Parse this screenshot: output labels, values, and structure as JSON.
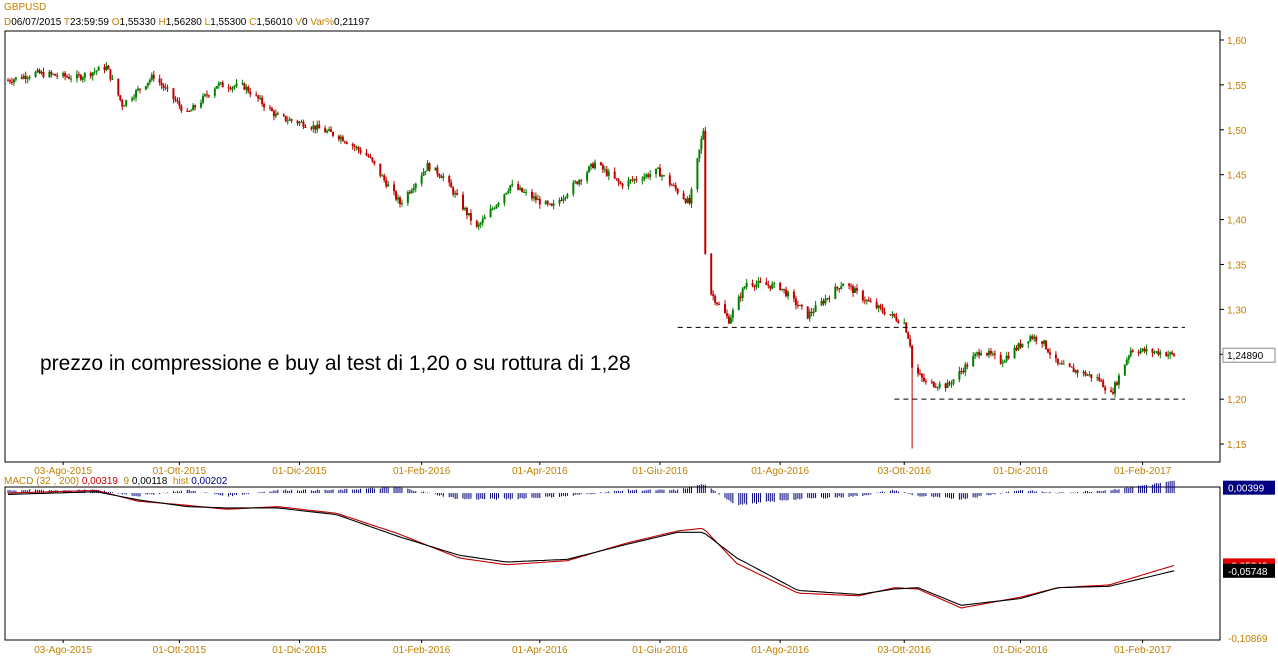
{
  "header": {
    "symbol": "GBPUSD",
    "d_label": "D",
    "date": "06/07/2015",
    "t_label": "T",
    "time": "23:59:59",
    "o_label": "O",
    "open": "1,55330",
    "h_label": "H",
    "high": "1,56280",
    "l_label": "L",
    "low": "1,55300",
    "c_label": "C",
    "close": "1,56010",
    "v_label": "V",
    "volume": "0",
    "var_label": "Var%",
    "var": "0,21197"
  },
  "annotation": "prezzo in compressione e buy al test di 1,20 o su rottura di 1,28",
  "price_tag": "1,24890",
  "macd_header": {
    "name": "MACD",
    "params": "(32 , 200)",
    "macd_value": "0,00319",
    "signal_label": "9",
    "signal_value": "0,00118",
    "hist_label": "hist",
    "hist_value": "0,00202"
  },
  "macd_tags": {
    "hist": "0,00399",
    "macd": "-0,05349",
    "signal": "-0,05748",
    "bottom": "-0,10869"
  },
  "colors": {
    "up": "#008000",
    "down": "#c00000",
    "axis": "#c08000",
    "hist": "#000080",
    "macd": "#c00000",
    "signal": "#000000"
  },
  "chart_data": [
    {
      "type": "candlestick",
      "title": "GBPUSD",
      "ylim": [
        1.13,
        1.61
      ],
      "y_ticks": [
        1.6,
        1.55,
        1.5,
        1.45,
        1.4,
        1.35,
        1.3,
        1.25,
        1.2,
        1.15
      ],
      "y_tick_labels": [
        "1,60",
        "1,55",
        "1,50",
        "1,45",
        "1,40",
        "1,35",
        "1,30",
        "1,25",
        "1,20",
        "1,15"
      ],
      "x_tick_labels": [
        "03-Ago-2015",
        "01-Ott-2015",
        "01-Dic-2015",
        "01-Feb-2016",
        "01-Apr-2016",
        "01-Giu-2016",
        "01-Ago-2016",
        "03-Ott-2016",
        "01-Dic-2016",
        "01-Feb-2017"
      ],
      "x_tick_dates": [
        "2015-08-03",
        "2015-10-01",
        "2015-12-01",
        "2016-02-01",
        "2016-04-01",
        "2016-06-01",
        "2016-08-01",
        "2016-10-03",
        "2016-12-01",
        "2017-02-01"
      ],
      "x_range": [
        "2015-07-06",
        "2017-02-20"
      ],
      "close_path": [
        [
          "2015-07-06",
          1.555
        ],
        [
          "2015-07-20",
          1.563
        ],
        [
          "2015-08-10",
          1.558
        ],
        [
          "2015-08-25",
          1.57
        ],
        [
          "2015-09-02",
          1.528
        ],
        [
          "2015-09-18",
          1.56
        ],
        [
          "2015-10-05",
          1.517
        ],
        [
          "2015-10-20",
          1.55
        ],
        [
          "2015-11-03",
          1.548
        ],
        [
          "2015-11-20",
          1.514
        ],
        [
          "2015-12-05",
          1.506
        ],
        [
          "2015-12-22",
          1.492
        ],
        [
          "2016-01-05",
          1.47
        ],
        [
          "2016-01-21",
          1.418
        ],
        [
          "2016-02-04",
          1.46
        ],
        [
          "2016-02-12",
          1.448
        ],
        [
          "2016-02-29",
          1.39
        ],
        [
          "2016-03-17",
          1.438
        ],
        [
          "2016-04-07",
          1.413
        ],
        [
          "2016-04-29",
          1.463
        ],
        [
          "2016-05-12",
          1.439
        ],
        [
          "2016-05-31",
          1.454
        ],
        [
          "2016-06-16",
          1.418
        ],
        [
          "2016-06-23",
          1.5
        ],
        [
          "2016-06-24",
          1.365
        ],
        [
          "2016-06-27",
          1.318
        ],
        [
          "2016-07-06",
          1.288
        ],
        [
          "2016-07-15",
          1.33
        ],
        [
          "2016-08-01",
          1.325
        ],
        [
          "2016-08-15",
          1.293
        ],
        [
          "2016-09-02",
          1.33
        ],
        [
          "2016-09-16",
          1.306
        ],
        [
          "2016-10-03",
          1.285
        ],
        [
          "2016-10-06",
          1.262
        ],
        [
          "2016-10-07",
          1.235
        ],
        [
          "2016-10-14",
          1.218
        ],
        [
          "2016-10-25",
          1.215
        ],
        [
          "2016-11-11",
          1.255
        ],
        [
          "2016-11-21",
          1.242
        ],
        [
          "2016-12-06",
          1.27
        ],
        [
          "2016-12-12",
          1.265
        ],
        [
          "2016-12-20",
          1.238
        ],
        [
          "2017-01-03",
          1.228
        ],
        [
          "2017-01-10",
          1.222
        ],
        [
          "2017-01-16",
          1.205
        ],
        [
          "2017-01-26",
          1.255
        ],
        [
          "2017-02-10",
          1.252
        ],
        [
          "2017-02-17",
          1.249
        ]
      ],
      "low_spike": {
        "date": "2016-10-07",
        "value": 1.145
      },
      "high_spike": {
        "date": "2016-06-23",
        "value": 1.502
      },
      "resistance": {
        "value": 1.28,
        "from": "2016-06-10",
        "to": "2017-02-28"
      },
      "support": {
        "value": 1.2,
        "from": "2016-09-28",
        "to": "2017-02-28"
      },
      "last": 1.2489
    },
    {
      "type": "line",
      "title": "MACD (32 , 200)",
      "ylim": [
        -0.1087,
        0.0045
      ],
      "series": [
        {
          "name": "MACD",
          "color": "#c00000",
          "points": [
            [
              "2015-07-06",
              0.0
            ],
            [
              "2015-08-20",
              0.002
            ],
            [
              "2015-09-10",
              -0.006
            ],
            [
              "2015-10-05",
              -0.009
            ],
            [
              "2015-10-25",
              -0.012
            ],
            [
              "2015-11-20",
              -0.01
            ],
            [
              "2015-12-20",
              -0.015
            ],
            [
              "2016-01-20",
              -0.03
            ],
            [
              "2016-02-20",
              -0.048
            ],
            [
              "2016-03-15",
              -0.053
            ],
            [
              "2016-04-15",
              -0.05
            ],
            [
              "2016-05-15",
              -0.037
            ],
            [
              "2016-06-10",
              -0.028
            ],
            [
              "2016-06-23",
              -0.026
            ],
            [
              "2016-07-10",
              -0.052
            ],
            [
              "2016-08-10",
              -0.074
            ],
            [
              "2016-09-10",
              -0.076
            ],
            [
              "2016-09-28",
              -0.07
            ],
            [
              "2016-10-10",
              -0.071
            ],
            [
              "2016-11-01",
              -0.085
            ],
            [
              "2016-12-01",
              -0.077
            ],
            [
              "2016-12-20",
              -0.07
            ],
            [
              "2017-01-15",
              -0.068
            ],
            [
              "2017-02-17",
              -0.0535
            ]
          ]
        },
        {
          "name": "Signal",
          "color": "#000000",
          "points": [
            [
              "2015-07-06",
              -0.001
            ],
            [
              "2015-08-20",
              0.001
            ],
            [
              "2015-09-10",
              -0.005
            ],
            [
              "2015-10-05",
              -0.01
            ],
            [
              "2015-10-25",
              -0.011
            ],
            [
              "2015-11-20",
              -0.011
            ],
            [
              "2015-12-20",
              -0.016
            ],
            [
              "2016-01-20",
              -0.032
            ],
            [
              "2016-02-20",
              -0.046
            ],
            [
              "2016-03-15",
              -0.051
            ],
            [
              "2016-04-15",
              -0.049
            ],
            [
              "2016-05-15",
              -0.038
            ],
            [
              "2016-06-10",
              -0.029
            ],
            [
              "2016-06-23",
              -0.029
            ],
            [
              "2016-07-10",
              -0.048
            ],
            [
              "2016-08-10",
              -0.072
            ],
            [
              "2016-09-10",
              -0.075
            ],
            [
              "2016-09-28",
              -0.071
            ],
            [
              "2016-10-10",
              -0.07
            ],
            [
              "2016-11-01",
              -0.083
            ],
            [
              "2016-12-01",
              -0.078
            ],
            [
              "2016-12-20",
              -0.07
            ],
            [
              "2017-01-15",
              -0.069
            ],
            [
              "2017-02-17",
              -0.0575
            ]
          ]
        },
        {
          "name": "hist",
          "color": "#000080",
          "values_note": ""
        }
      ]
    }
  ]
}
